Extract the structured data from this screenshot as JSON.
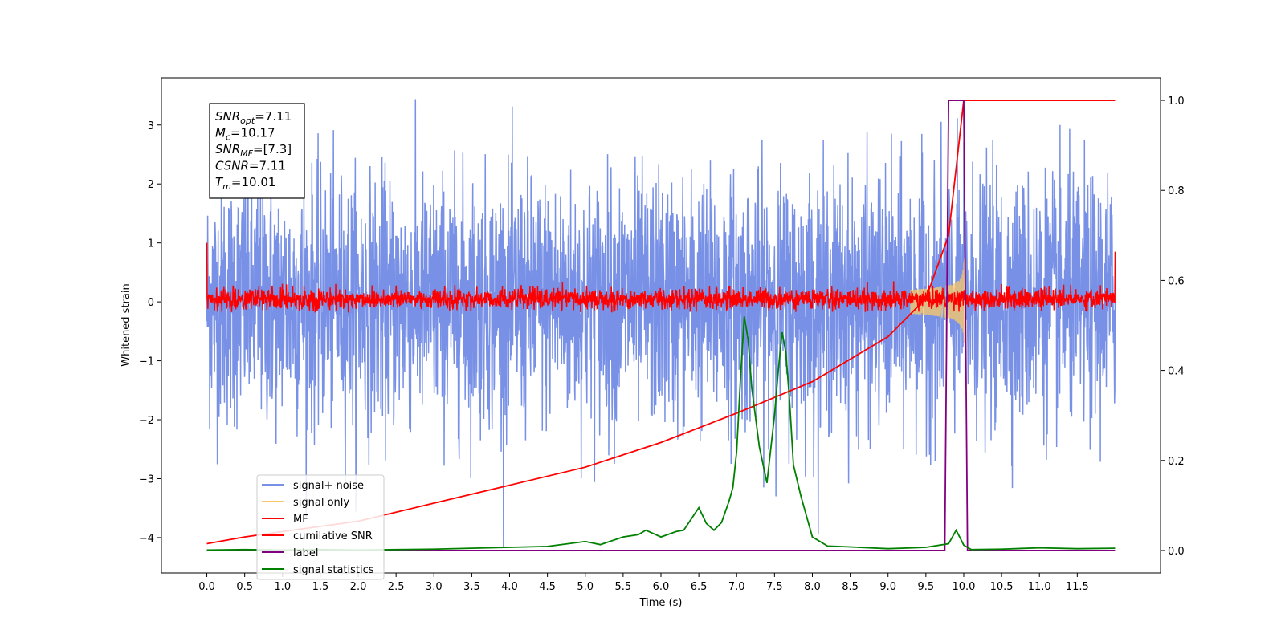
{
  "chart_data": {
    "type": "line",
    "xlabel": "Time (s)",
    "ylabel": "Whitened strain",
    "xlim": [
      -0.6,
      12.6
    ],
    "ylim_left": [
      -4.6,
      3.8
    ],
    "ylim_right": [
      -0.05,
      1.05
    ],
    "x_ticks": [
      "0.0",
      "0.5",
      "1.0",
      "1.5",
      "2.0",
      "2.5",
      "3.0",
      "3.5",
      "4.0",
      "4.5",
      "5.0",
      "5.5",
      "6.0",
      "6.5",
      "7.0",
      "7.5",
      "8.0",
      "8.5",
      "9.0",
      "9.5",
      "10.0",
      "10.5",
      "11.0",
      "11.5"
    ],
    "y_ticks_left": [
      "3",
      "2",
      "1",
      "0",
      "−1",
      "−2",
      "−3",
      "−4"
    ],
    "y_ticks_right": [
      "1.0",
      "0.8",
      "0.6",
      "0.4",
      "0.2",
      "0.0"
    ],
    "legend": {
      "placement": "lower-left",
      "entries": [
        "signal+ noise",
        "signal only",
        "MF",
        "cumilative SNR",
        "label",
        "signal statistics"
      ]
    },
    "info_box": {
      "lines": [
        {
          "name": "SNR",
          "sub": "opt",
          "value": "=7.11"
        },
        {
          "name": "M",
          "sub": "c",
          "value": "=10.17"
        },
        {
          "name": "SNR",
          "sub": "MF",
          "value": "=[7.3]"
        },
        {
          "name": "CSNR",
          "sub": "",
          "value": "=7.11"
        },
        {
          "name": "T",
          "sub": "m",
          "value": "=10.01"
        }
      ]
    },
    "series": [
      {
        "name": "signal+ noise",
        "axis": "left",
        "color": "#7891e6",
        "x_range": [
          0.0,
          12.0
        ],
        "band_approx": [
          -3.0,
          3.2
        ],
        "extremes": {
          "max": 3.45,
          "min": -4.15
        }
      },
      {
        "name": "signal only",
        "axis": "left",
        "color": "#f5c76e",
        "chirp_peak_time": 10.0,
        "peak_amplitude": 0.75
      },
      {
        "name": "MF",
        "axis": "left",
        "color": "#ff0000",
        "x_range": [
          0.0,
          12.0
        ],
        "band_approx": [
          -0.18,
          0.35
        ],
        "start_value": 1.0,
        "end_value": 0.85
      },
      {
        "name": "cumilative SNR",
        "axis": "right",
        "color": "#ff0000",
        "x": [
          0.0,
          0.5,
          1.0,
          2.0,
          3.0,
          4.0,
          5.0,
          6.0,
          7.0,
          8.0,
          9.0,
          9.5,
          9.8,
          10.0,
          12.0
        ],
        "y": [
          0.015,
          0.03,
          0.042,
          0.065,
          0.105,
          0.145,
          0.185,
          0.24,
          0.305,
          0.375,
          0.475,
          0.56,
          0.7,
          1.0,
          1.0
        ]
      },
      {
        "name": "label",
        "axis": "right",
        "color": "#800080",
        "x": [
          0.0,
          9.75,
          9.8,
          10.0,
          10.05,
          12.0
        ],
        "y": [
          0.0,
          0.0,
          1.0,
          1.0,
          0.0,
          0.0
        ]
      },
      {
        "name": "signal statistics",
        "axis": "right",
        "color": "#008000",
        "x": [
          0.0,
          0.5,
          1.0,
          1.5,
          2.0,
          2.5,
          3.0,
          3.5,
          4.0,
          4.5,
          5.0,
          5.2,
          5.5,
          5.7,
          5.8,
          6.0,
          6.2,
          6.3,
          6.4,
          6.5,
          6.6,
          6.7,
          6.8,
          6.9,
          6.95,
          7.0,
          7.05,
          7.1,
          7.15,
          7.2,
          7.3,
          7.4,
          7.5,
          7.55,
          7.6,
          7.65,
          7.7,
          7.75,
          7.85,
          8.0,
          8.2,
          8.5,
          9.0,
          9.5,
          9.8,
          9.9,
          10.0,
          10.1,
          10.5,
          11.0,
          11.5,
          12.0
        ],
        "y": [
          0.001,
          0.002,
          0.001,
          0.002,
          0.001,
          0.002,
          0.003,
          0.005,
          0.007,
          0.009,
          0.02,
          0.013,
          0.03,
          0.035,
          0.045,
          0.03,
          0.042,
          0.045,
          0.07,
          0.095,
          0.06,
          0.045,
          0.062,
          0.11,
          0.14,
          0.22,
          0.38,
          0.52,
          0.47,
          0.36,
          0.23,
          0.15,
          0.3,
          0.4,
          0.485,
          0.44,
          0.33,
          0.19,
          0.12,
          0.03,
          0.01,
          0.008,
          0.004,
          0.007,
          0.015,
          0.045,
          0.012,
          0.002,
          0.003,
          0.006,
          0.004,
          0.005
        ]
      }
    ]
  }
}
